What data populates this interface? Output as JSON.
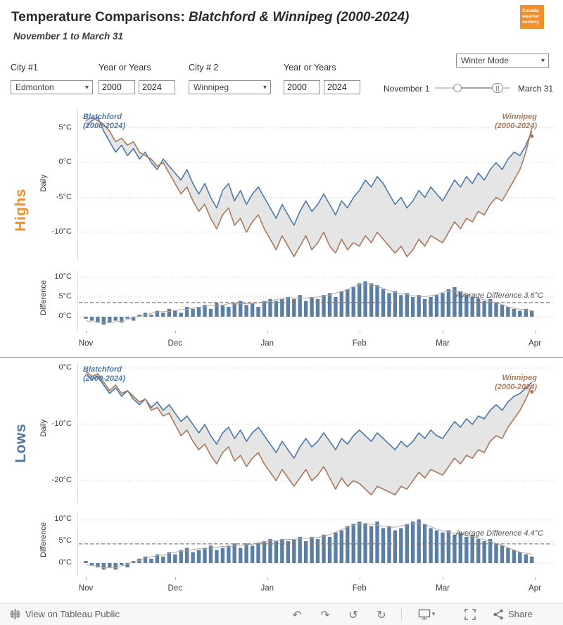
{
  "header": {
    "title_prefix": "Temperature Comparisons: ",
    "title_italic": "Blatchford & Winnipeg (2000-2024)",
    "subtitle": "November 1 to March 31",
    "badge_lines": [
      "Canada",
      "weather",
      "nerdery"
    ]
  },
  "controls": {
    "city1_label": "City #1",
    "year_label_1": "Year or Years",
    "city2_label": "City # 2",
    "year_label_2": "Year or Years",
    "city1_value": "Edmonton",
    "city2_value": "Winnipeg",
    "year1_start": "2000",
    "year1_end": "2024",
    "year2_start": "2000",
    "year2_end": "2024",
    "mode_value": "Winter Mode",
    "slider_left_label": "November 1",
    "slider_right_label": "March 31"
  },
  "sections": {
    "highs_label": "Highs",
    "lows_label": "Lows"
  },
  "colors": {
    "accent_orange": "#f28e2b",
    "blue": "#4e79a7",
    "brown": "#a9795d",
    "bar_blue": "#5b7fa3",
    "area_fill": "#dcdcdc"
  },
  "months": {
    "labels": [
      "Nov",
      "Dec",
      "Jan",
      "Feb",
      "Mar",
      "Apr"
    ],
    "day_positions": [
      0,
      30,
      61,
      92,
      120,
      151
    ]
  },
  "chart_data": [
    {
      "id": "highs-daily",
      "type": "line",
      "title": "Daily Highs",
      "ylabel": "Daily",
      "unit": "°C",
      "yticks": [
        5,
        0,
        -5,
        -10
      ],
      "x_start": "Nov 1",
      "x_end": "Mar 31",
      "x_step_days": 2,
      "series": [
        {
          "name": "Blatchford",
          "label": "Blatchford",
          "sub": "(2000-2024)",
          "color": "#4e79a7",
          "values": [
            5,
            6,
            6.5,
            4.5,
            3,
            1.5,
            2.5,
            1,
            2,
            0.5,
            1.5,
            0,
            -1,
            0.5,
            -0.5,
            -1.5,
            -2.5,
            -1,
            -3,
            -4.5,
            -3,
            -5,
            -6.5,
            -4,
            -3,
            -5.5,
            -4,
            -6,
            -4.5,
            -3.5,
            -5,
            -6.5,
            -8,
            -6,
            -7.5,
            -9,
            -7,
            -5.5,
            -7,
            -6,
            -4.5,
            -6,
            -7.5,
            -5.5,
            -6.5,
            -5,
            -4,
            -2.5,
            -3.5,
            -2,
            -3,
            -4.5,
            -6,
            -5,
            -6.5,
            -5.5,
            -4,
            -5,
            -3.5,
            -4.5,
            -5.5,
            -4,
            -2.5,
            -3.5,
            -2,
            -3,
            -1.5,
            -2.5,
            -1,
            0,
            -1,
            0.5,
            1.5,
            1,
            2.5,
            4.5
          ]
        },
        {
          "name": "Winnipeg",
          "label": "Winnipeg",
          "sub": "(2000-2024)",
          "color": "#a9795d",
          "values": [
            6,
            6.5,
            6,
            5.5,
            4.5,
            3,
            3.5,
            2.5,
            3,
            1.5,
            1,
            0.5,
            -0.5,
            0,
            -1.5,
            -3,
            -4.5,
            -3.5,
            -5.5,
            -7,
            -6,
            -8,
            -9.5,
            -7.5,
            -6.5,
            -9,
            -8,
            -10,
            -8.5,
            -7.5,
            -9.5,
            -11,
            -12.5,
            -10.5,
            -12,
            -13.5,
            -12,
            -10.5,
            -12.5,
            -11.5,
            -10,
            -12,
            -13,
            -11,
            -12.5,
            -11.5,
            -12,
            -10.5,
            -11.5,
            -10,
            -11,
            -12,
            -13,
            -12,
            -13.5,
            -12.5,
            -11,
            -12,
            -10.5,
            -11,
            -11.5,
            -10,
            -8.5,
            -9.5,
            -8,
            -8.5,
            -7,
            -7.5,
            -6,
            -5,
            -5.5,
            -4,
            -2.5,
            -1,
            1.5,
            5
          ]
        }
      ]
    },
    {
      "id": "highs-diff",
      "type": "bar",
      "title": "Daily Highs Difference",
      "ylabel": "Difference",
      "unit": "°C",
      "yticks": [
        10,
        5,
        0
      ],
      "average": 3.6,
      "annotation": "Average Difference 3.6°C",
      "values": [
        -0.5,
        -1,
        -1.5,
        -2,
        -1.5,
        -1,
        -1.5,
        -0.5,
        -1,
        0.5,
        1,
        0.5,
        1.5,
        1,
        2,
        1.5,
        1,
        2.5,
        2,
        2.5,
        3,
        2,
        3.5,
        3,
        2.5,
        3.5,
        4,
        3,
        3.5,
        2.5,
        4,
        4.5,
        4,
        4.5,
        5,
        4.5,
        5.5,
        4,
        5,
        4.5,
        5.5,
        6,
        5,
        6.5,
        7,
        7.5,
        8.5,
        9,
        8.5,
        8,
        7,
        6,
        6.5,
        5.5,
        6,
        5,
        5.5,
        4.5,
        5,
        5.5,
        6,
        7,
        7.5,
        6.5,
        5.5,
        5,
        4.5,
        4,
        4.5,
        3.5,
        3,
        2.5,
        2,
        1.5,
        2,
        1.5
      ]
    },
    {
      "id": "lows-daily",
      "type": "line",
      "title": "Daily Lows",
      "ylabel": "Daily",
      "unit": "°C",
      "yticks": [
        0,
        -10,
        -20
      ],
      "x_start": "Nov 1",
      "x_end": "Mar 31",
      "x_step_days": 2,
      "series": [
        {
          "name": "Blatchford",
          "label": "Blatchford",
          "sub": "(2000-2024)",
          "color": "#4e79a7",
          "values": [
            -1,
            -2,
            -1.5,
            -3,
            -4.5,
            -3.5,
            -5,
            -4,
            -5.5,
            -6.5,
            -5.5,
            -7,
            -6,
            -7.5,
            -6.5,
            -8,
            -9.5,
            -8.5,
            -10,
            -11.5,
            -10,
            -12,
            -13.5,
            -11.5,
            -10.5,
            -12.5,
            -11,
            -13,
            -11.5,
            -10.5,
            -12,
            -13.5,
            -15,
            -13,
            -14.5,
            -16,
            -14,
            -12.5,
            -14,
            -13,
            -11.5,
            -13,
            -14.5,
            -12.5,
            -13.5,
            -12,
            -11,
            -12,
            -13,
            -11.5,
            -12.5,
            -13.5,
            -14.5,
            -13,
            -14,
            -13,
            -11.5,
            -12.5,
            -11,
            -12,
            -12.5,
            -11,
            -9.5,
            -10.5,
            -9,
            -10,
            -8.5,
            -9,
            -7.5,
            -6.5,
            -7.5,
            -6,
            -5,
            -4.5,
            -3.5,
            -2.5
          ]
        },
        {
          "name": "Winnipeg",
          "label": "Winnipeg",
          "sub": "(2000-2024)",
          "color": "#a9795d",
          "values": [
            -0.5,
            -1.5,
            -1,
            -2.5,
            -4,
            -3,
            -4.5,
            -4,
            -5,
            -6,
            -5.5,
            -7.5,
            -7,
            -8.5,
            -8,
            -10,
            -12,
            -11,
            -13,
            -14.5,
            -13.5,
            -15.5,
            -17,
            -15,
            -14,
            -16.5,
            -15.5,
            -17.5,
            -16,
            -15,
            -17,
            -18.5,
            -20,
            -18,
            -19.5,
            -21,
            -19.5,
            -18,
            -20,
            -19,
            -17.5,
            -19.5,
            -21.5,
            -19.5,
            -21,
            -20,
            -20.5,
            -21.5,
            -22.5,
            -21,
            -21.5,
            -22,
            -22.5,
            -21,
            -21.5,
            -20,
            -18.5,
            -19.5,
            -18,
            -18.5,
            -19,
            -17.5,
            -16,
            -17,
            -15.5,
            -16,
            -14.5,
            -15,
            -13,
            -12,
            -12.5,
            -10.5,
            -9,
            -7.5,
            -5.5,
            -3
          ]
        }
      ]
    },
    {
      "id": "lows-diff",
      "type": "bar",
      "title": "Daily Lows Difference",
      "ylabel": "Difference",
      "unit": "°C",
      "yticks": [
        10,
        5,
        0
      ],
      "average": 4.4,
      "annotation": "Average Difference 4.4°C",
      "values": [
        0.5,
        -0.5,
        -1,
        -1.5,
        -1,
        -1.5,
        -0.5,
        -1,
        0.5,
        1,
        1.5,
        1,
        2,
        1.5,
        2.5,
        2,
        3,
        3.5,
        2.5,
        3,
        3.5,
        4,
        3,
        3.5,
        4,
        4.5,
        3.5,
        4.5,
        4,
        4.5,
        5,
        5.5,
        5,
        5.5,
        5,
        5.5,
        6,
        5,
        6,
        5.5,
        6.5,
        6,
        7,
        7.5,
        8.5,
        9,
        9.5,
        9,
        8.5,
        9.5,
        8,
        8.5,
        7.5,
        8,
        9,
        9.5,
        10,
        9,
        8,
        7.5,
        7,
        7.5,
        6.5,
        7,
        6,
        6.5,
        5.5,
        5,
        5.5,
        4.5,
        4,
        3.5,
        3,
        2.5,
        2,
        1.5
      ]
    }
  ],
  "footer": {
    "view_text": "View on Tableau Public",
    "share_label": "Share"
  }
}
